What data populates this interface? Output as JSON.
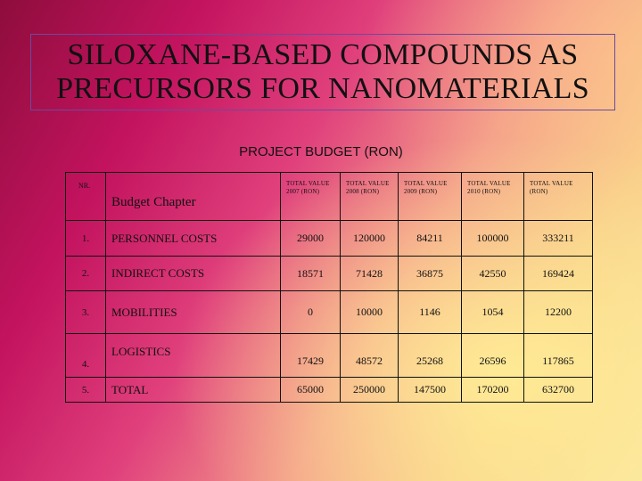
{
  "title": "SILOXANE-BASED COMPOUNDS AS PRECURSORS FOR NANOMATERIALS",
  "subtitle": "PROJECT BUDGET (RON)",
  "table": {
    "nr_header": "NR.",
    "chapter_header": "Budget Chapter",
    "column_headers": [
      "TOTAL VALUE 2007 (RON)",
      "TOTAL VALUE 2008 (RON)",
      "TOTAL VALUE 2009 (RON)",
      "TOTAL VALUE 2010 (RON)",
      "TOTAL VALUE (RON)"
    ],
    "rows": [
      {
        "nr": "1.",
        "label": "PERSONNEL COSTS",
        "values": [
          "29000",
          "120000",
          "84211",
          "100000",
          "333211"
        ]
      },
      {
        "nr": "2.",
        "label": "INDIRECT COSTS",
        "values": [
          "18571",
          "71428",
          "36875",
          "42550",
          "169424"
        ]
      },
      {
        "nr": "3.",
        "label": "MOBILITIES",
        "values": [
          "0",
          "10000",
          "1146",
          "1054",
          "12200"
        ]
      },
      {
        "nr": "4.",
        "label": "LOGISTICS",
        "values": [
          "17429",
          "48572",
          "25268",
          "26596",
          "117865"
        ]
      },
      {
        "nr": "5.",
        "label": "TOTAL",
        "values": [
          "65000",
          "250000",
          "147500",
          "170200",
          "632700"
        ]
      }
    ]
  }
}
